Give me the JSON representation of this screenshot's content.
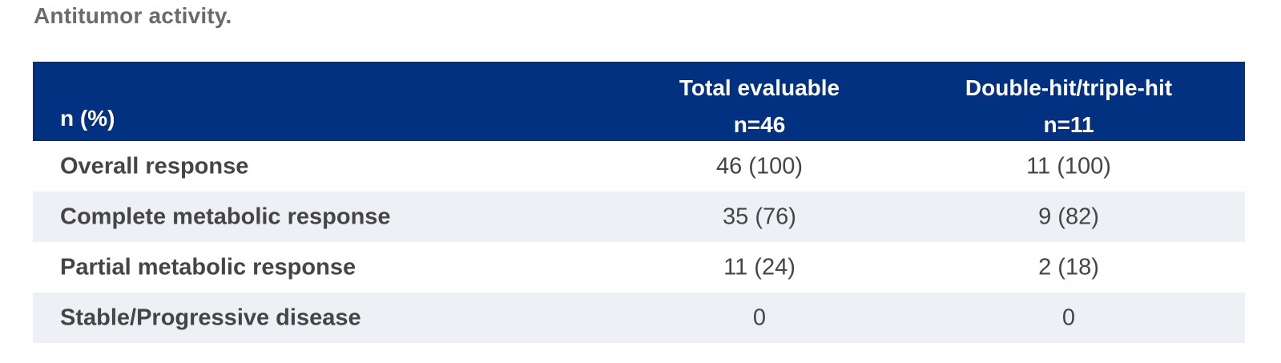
{
  "title": "Antitumor activity.",
  "table": {
    "header": {
      "label": "n (%)",
      "columns": [
        {
          "line1": "Total evaluable",
          "line2": "n=46"
        },
        {
          "line1": "Double-hit/triple-hit",
          "line2": "n=11"
        }
      ]
    },
    "rows": [
      {
        "label": "Overall response",
        "values": [
          "46 (100)",
          "11 (100)"
        ]
      },
      {
        "label": "Complete metabolic response",
        "values": [
          "35 (76)",
          "9 (82)"
        ]
      },
      {
        "label": "Partial metabolic response",
        "values": [
          "11 (24)",
          "2 (18)"
        ]
      },
      {
        "label": "Stable/Progressive disease",
        "values": [
          "0",
          "0"
        ]
      }
    ]
  },
  "colors": {
    "header_bg": "#033181",
    "alt_row_bg": "#edf0f4",
    "title": "#6b6b6b"
  }
}
